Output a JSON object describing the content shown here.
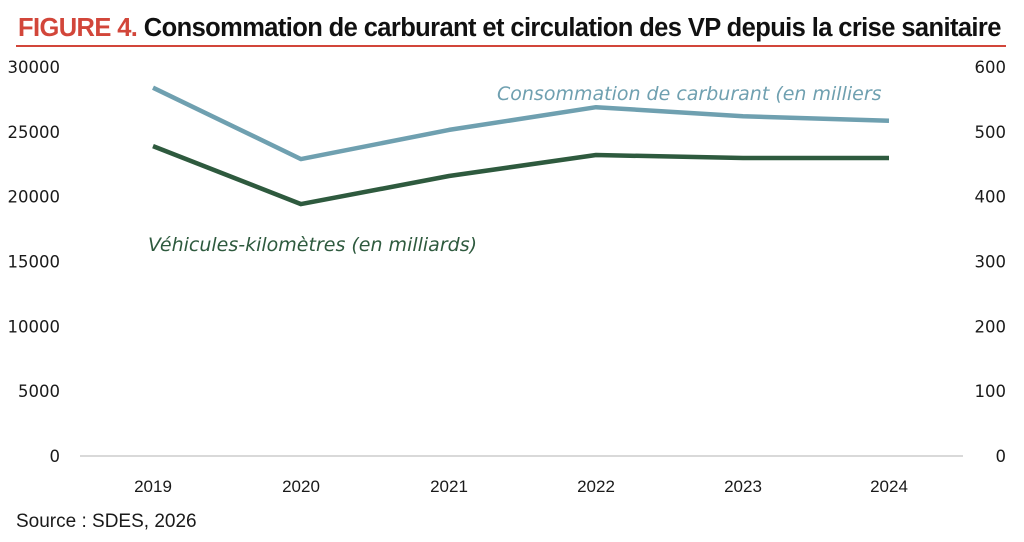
{
  "header": {
    "figure_label": "FIGURE 4.",
    "title": "Consommation de carburant et circulation des VP depuis la crise sanitaire"
  },
  "footer": {
    "source": "Source : SDES, 2026"
  },
  "colors": {
    "accent": "#d2463a",
    "fuel_series": "#6fa0b0",
    "vkm_series": "#2e5a3e",
    "baseline": "#d9d9d9"
  },
  "chart_data": {
    "type": "line",
    "title": "FIGURE 4. Consommation de carburant et circulation des VP depuis la crise sanitaire",
    "x": [
      "2019",
      "2020",
      "2021",
      "2022",
      "2023",
      "2024"
    ],
    "xlabel": "",
    "ylabel": "",
    "y_left": {
      "ylim": [
        0,
        30000
      ],
      "ticks": [
        "0",
        "5000",
        "10000",
        "15000",
        "20000",
        "25000",
        "30000"
      ]
    },
    "y_right": {
      "ylim": [
        0,
        600
      ],
      "ticks": [
        "0",
        "100",
        "200",
        "300",
        "400",
        "500",
        "600"
      ]
    },
    "grid": false,
    "legend": "inline labels",
    "series": [
      {
        "name": "Consommation de carburant (en milliers",
        "axis": "right",
        "color": "#6fa0b0",
        "values": [
          568,
          458,
          503,
          538,
          524,
          517
        ]
      },
      {
        "name": "Véhicules-kilomètres (en milliards)",
        "axis": "left",
        "color": "#2e5a3e",
        "values": [
          23900,
          19430,
          21590,
          23210,
          22980,
          22980
        ]
      }
    ]
  }
}
